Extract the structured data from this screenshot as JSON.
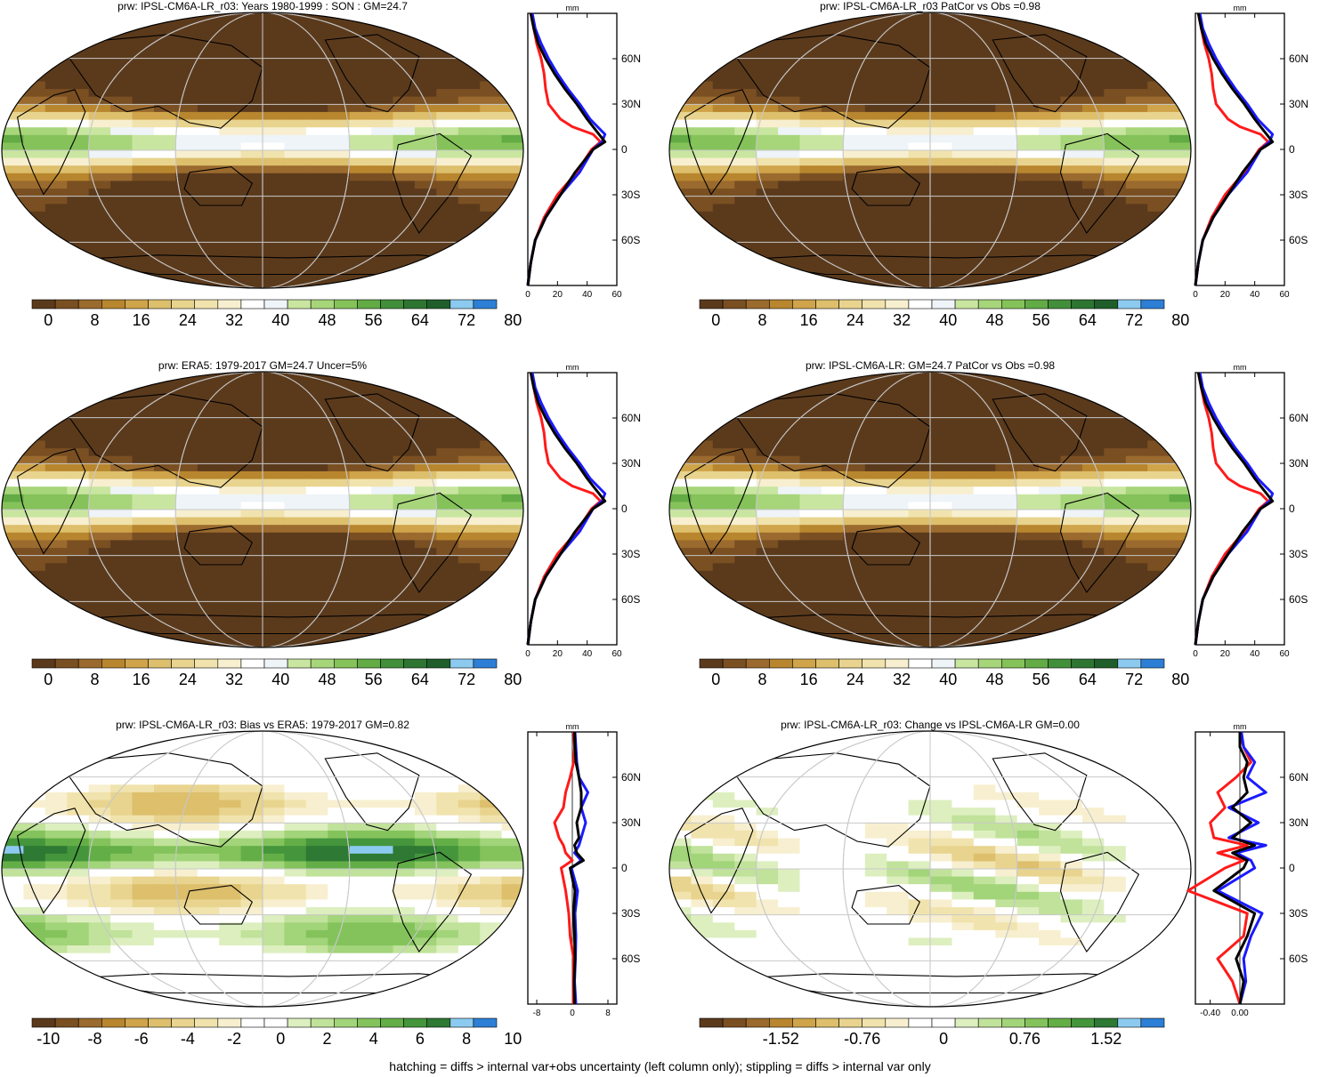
{
  "footer": "hatching = diffs > internal var+obs uncertainty (left column only); stippling = diffs > internal var only",
  "colors": {
    "obs_line": "#ff1a1a",
    "model_line": "#1a1aff",
    "mean_line": "#000000",
    "brown_dark": "#5a3a1a",
    "green_dark": "#1f6a2c",
    "blue_end": "#2a7ad8"
  },
  "panels": [
    {
      "title": "prw: IPSL-CM6A-LR_r03: Years 1980-1999 : SON : GM=24.7",
      "kind": "field",
      "colorbar": {
        "tick_labels": [
          "0",
          "8",
          "16",
          "24",
          "32",
          "40",
          "48",
          "56",
          "64",
          "72",
          "80"
        ]
      },
      "profile": {
        "unit": "mm",
        "x_ticks": [
          "0",
          "20",
          "40",
          "60"
        ],
        "y_ticks": [
          "60N",
          "30N",
          "0",
          "30S",
          "60S"
        ]
      }
    },
    {
      "title": "prw: IPSL-CM6A-LR_r03 PatCor vs Obs =0.98",
      "kind": "field",
      "colorbar": {
        "tick_labels": [
          "0",
          "8",
          "16",
          "24",
          "32",
          "40",
          "48",
          "56",
          "64",
          "72",
          "80"
        ]
      },
      "profile": {
        "unit": "mm",
        "x_ticks": [
          "0",
          "20",
          "40",
          "60"
        ],
        "y_ticks": [
          "60N",
          "30N",
          "0",
          "30S",
          "60S"
        ]
      }
    },
    {
      "title": "prw: ERA5: 1979-2017 GM=24.7 Uncer=5%",
      "kind": "field",
      "colorbar": {
        "tick_labels": [
          "0",
          "8",
          "16",
          "24",
          "32",
          "40",
          "48",
          "56",
          "64",
          "72",
          "80"
        ]
      },
      "profile": {
        "unit": "mm",
        "x_ticks": [
          "0",
          "20",
          "40",
          "60"
        ],
        "y_ticks": [
          "60N",
          "30N",
          "0",
          "30S",
          "60S"
        ]
      }
    },
    {
      "title": "prw: IPSL-CM6A-LR: GM=24.7 PatCor vs Obs =0.98",
      "kind": "field",
      "colorbar": {
        "tick_labels": [
          "0",
          "8",
          "16",
          "24",
          "32",
          "40",
          "48",
          "56",
          "64",
          "72",
          "80"
        ]
      },
      "profile": {
        "unit": "mm",
        "x_ticks": [
          "0",
          "20",
          "40",
          "60"
        ],
        "y_ticks": [
          "60N",
          "30N",
          "0",
          "30S",
          "60S"
        ]
      }
    },
    {
      "title": "prw: IPSL-CM6A-LR_r03: Bias vs ERA5: 1979-2017  GM=0.82",
      "kind": "diff",
      "colorbar": {
        "tick_labels": [
          "-10",
          "-8",
          "-6",
          "-4",
          "-2",
          "0",
          "2",
          "4",
          "6",
          "8",
          "10"
        ]
      },
      "profile": {
        "unit": "mm",
        "x_ticks": [
          "-8",
          "0",
          "8"
        ],
        "y_ticks": [
          "60N",
          "30N",
          "0",
          "30S",
          "60S"
        ]
      }
    },
    {
      "title": "prw: IPSL-CM6A-LR_r03: Change vs IPSL-CM6A-LR GM=0.00",
      "kind": "change",
      "colorbar": {
        "tick_labels": [
          "-1.52",
          "-0.76",
          "0",
          "0.76",
          "1.52"
        ]
      },
      "profile": {
        "unit": "mm",
        "x_ticks": [
          "-0.40",
          "0.00"
        ],
        "y_ticks": [
          "60N",
          "30N",
          "0",
          "30S",
          "60S"
        ]
      }
    }
  ],
  "chart_data": [
    {
      "type": "line",
      "title": "prw: IPSL-CM6A-LR_r03: Years 1980-1999 : SON : GM=24.7",
      "xlabel": "mm",
      "ylabel": "",
      "xlim": [
        0,
        60
      ],
      "ylim": [
        -90,
        90
      ],
      "y": [
        -90,
        -75,
        -60,
        -45,
        -30,
        -15,
        0,
        5,
        10,
        15,
        20,
        30,
        40,
        50,
        60,
        70,
        80,
        90
      ],
      "series": [
        {
          "values": [
            0,
            2,
            5,
            12,
            22,
            32,
            44,
            52,
            48,
            44,
            40,
            33,
            25,
            18,
            12,
            7,
            4,
            2
          ]
        },
        {
          "values": [
            0,
            2,
            5,
            12,
            22,
            35,
            44,
            50,
            52,
            47,
            42,
            35,
            27,
            20,
            14,
            9,
            5,
            3
          ]
        },
        {
          "values": [
            0,
            2,
            5,
            11,
            20,
            33,
            43,
            49,
            44,
            30,
            22,
            14,
            12,
            11,
            9,
            6,
            4,
            2
          ]
        }
      ]
    },
    {
      "type": "line",
      "title": "prw: IPSL-CM6A-LR_r03 PatCor vs Obs =0.98",
      "xlabel": "mm",
      "ylabel": "",
      "xlim": [
        0,
        60
      ],
      "ylim": [
        -90,
        90
      ],
      "y": [
        -90,
        -75,
        -60,
        -45,
        -30,
        -15,
        0,
        5,
        10,
        15,
        20,
        30,
        40,
        50,
        60,
        70,
        80,
        90
      ],
      "series": [
        {
          "values": [
            0,
            2,
            5,
            12,
            22,
            32,
            44,
            52,
            48,
            44,
            40,
            33,
            25,
            18,
            12,
            7,
            4,
            2
          ]
        },
        {
          "values": [
            0,
            2,
            5,
            12,
            22,
            35,
            44,
            50,
            52,
            47,
            42,
            35,
            27,
            20,
            14,
            9,
            5,
            3
          ]
        },
        {
          "values": [
            0,
            2,
            5,
            11,
            20,
            33,
            43,
            49,
            44,
            30,
            22,
            14,
            12,
            11,
            9,
            6,
            4,
            2
          ]
        }
      ]
    },
    {
      "type": "line",
      "title": "prw: ERA5: 1979-2017 GM=24.7 Uncer=5%",
      "xlabel": "mm",
      "ylabel": "",
      "xlim": [
        0,
        60
      ],
      "ylim": [
        -90,
        90
      ],
      "y": [
        -90,
        -75,
        -60,
        -45,
        -30,
        -15,
        0,
        5,
        10,
        15,
        20,
        30,
        40,
        50,
        60,
        70,
        80,
        90
      ],
      "series": [
        {
          "values": [
            0,
            2,
            5,
            12,
            22,
            32,
            44,
            52,
            48,
            44,
            40,
            33,
            25,
            18,
            12,
            7,
            4,
            2
          ]
        },
        {
          "values": [
            0,
            2,
            5,
            12,
            22,
            35,
            44,
            50,
            52,
            47,
            42,
            35,
            27,
            20,
            14,
            9,
            5,
            3
          ]
        },
        {
          "values": [
            0,
            2,
            5,
            11,
            20,
            33,
            43,
            49,
            44,
            30,
            22,
            14,
            12,
            11,
            9,
            6,
            4,
            2
          ]
        }
      ]
    },
    {
      "type": "line",
      "title": "prw: IPSL-CM6A-LR: GM=24.7 PatCor vs Obs =0.98",
      "xlabel": "mm",
      "ylabel": "",
      "xlim": [
        0,
        60
      ],
      "ylim": [
        -90,
        90
      ],
      "y": [
        -90,
        -75,
        -60,
        -45,
        -30,
        -15,
        0,
        5,
        10,
        15,
        20,
        30,
        40,
        50,
        60,
        70,
        80,
        90
      ],
      "series": [
        {
          "values": [
            0,
            2,
            5,
            12,
            22,
            32,
            44,
            52,
            48,
            44,
            40,
            33,
            25,
            18,
            12,
            7,
            4,
            2
          ]
        },
        {
          "values": [
            0,
            2,
            5,
            12,
            22,
            35,
            44,
            50,
            52,
            47,
            42,
            35,
            27,
            20,
            14,
            9,
            5,
            3
          ]
        },
        {
          "values": [
            0,
            2,
            5,
            11,
            20,
            33,
            43,
            49,
            44,
            30,
            22,
            14,
            12,
            11,
            9,
            6,
            4,
            2
          ]
        }
      ]
    },
    {
      "type": "line",
      "title": "prw: IPSL-CM6A-LR_r03: Bias vs ERA5: 1979-2017  GM=0.82",
      "xlabel": "mm",
      "ylabel": "",
      "xlim": [
        -10,
        10
      ],
      "ylim": [
        -90,
        90
      ],
      "y": [
        -90,
        -75,
        -60,
        -45,
        -30,
        -15,
        0,
        5,
        10,
        15,
        20,
        30,
        40,
        50,
        60,
        70,
        80,
        90
      ],
      "series": [
        {
          "values": [
            0.5,
            0.4,
            0.6,
            0.5,
            0.3,
            0.6,
            -0.5,
            2.5,
            1,
            0.5,
            1.5,
            1,
            2,
            2,
            1.5,
            0.8,
            0.6,
            0.5
          ]
        },
        {
          "values": [
            0.8,
            0.5,
            0.7,
            0.8,
            0.6,
            1.2,
            -0.2,
            2,
            0.5,
            1.5,
            2,
            3,
            2,
            3.5,
            1.5,
            1,
            0.8,
            0.6
          ]
        },
        {
          "values": [
            0.2,
            0.2,
            0.3,
            -0.5,
            -0.8,
            -1.5,
            -2.5,
            0,
            -1.5,
            -2,
            -3,
            -4,
            -2,
            -1.5,
            -0.5,
            0.3,
            0.5,
            0.3
          ]
        }
      ]
    },
    {
      "type": "line",
      "title": "prw: IPSL-CM6A-LR_r03: Change vs IPSL-CM6A-LR GM=0.00",
      "xlabel": "mm",
      "ylabel": "",
      "xlim": [
        -0.6,
        0.6
      ],
      "ylim": [
        -90,
        90
      ],
      "y": [
        -90,
        -75,
        -60,
        -45,
        -30,
        -15,
        0,
        5,
        10,
        15,
        20,
        30,
        40,
        50,
        60,
        70,
        80,
        90
      ],
      "series": [
        {
          "values": [
            0,
            0.05,
            -0.05,
            0.1,
            0.2,
            -0.35,
            0.05,
            0.1,
            -0.1,
            0.2,
            -0.1,
            0.15,
            -0.1,
            0.1,
            0.05,
            0.1,
            0,
            0
          ]
        },
        {
          "values": [
            0,
            0.08,
            0.05,
            0.15,
            0.3,
            -0.3,
            0.2,
            0.15,
            -0.05,
            0.35,
            -0.15,
            0.25,
            -0.15,
            0.35,
            0.1,
            0.2,
            0.05,
            0.02
          ]
        },
        {
          "values": [
            0,
            -0.1,
            -0.3,
            0.05,
            0.1,
            -0.7,
            -0.2,
            0.05,
            -0.3,
            0.1,
            -0.35,
            -0.4,
            -0.2,
            -0.3,
            -0.05,
            0.15,
            0.05,
            0
          ]
        }
      ]
    }
  ]
}
